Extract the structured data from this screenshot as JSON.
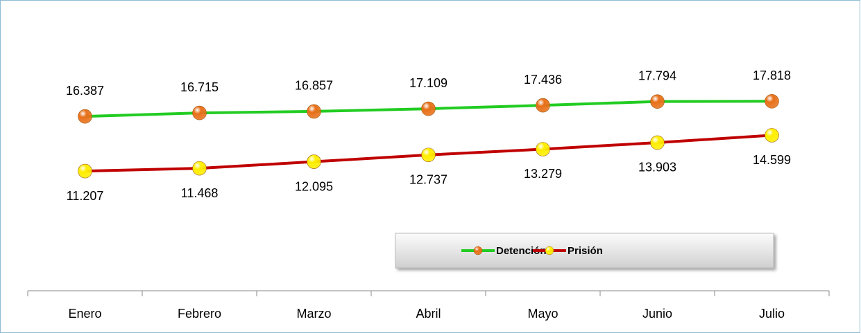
{
  "chart_data": {
    "type": "line",
    "categories": [
      "Enero",
      "Febrero",
      "Marzo",
      "Abril",
      "Mayo",
      "Junio",
      "Julio"
    ],
    "series": [
      {
        "name": "Detención",
        "color": "#22cc22",
        "marker_color": "#e8701a",
        "values": [
          16387,
          16715,
          16857,
          17109,
          17436,
          17794,
          17818
        ],
        "value_labels": [
          "16.387",
          "16.715",
          "16.857",
          "17.109",
          "17.436",
          "17.794",
          "17.818"
        ]
      },
      {
        "name": "Prisión",
        "color": "#c00000",
        "marker_color": "#ffee00",
        "values": [
          11207,
          11468,
          12095,
          12737,
          13279,
          13903,
          14599
        ],
        "value_labels": [
          "11.207",
          "11.468",
          "12.095",
          "12.737",
          "13.279",
          "13.903",
          "14.599"
        ]
      }
    ],
    "ylim": [
      0,
      20000
    ],
    "legend": "bottom"
  }
}
